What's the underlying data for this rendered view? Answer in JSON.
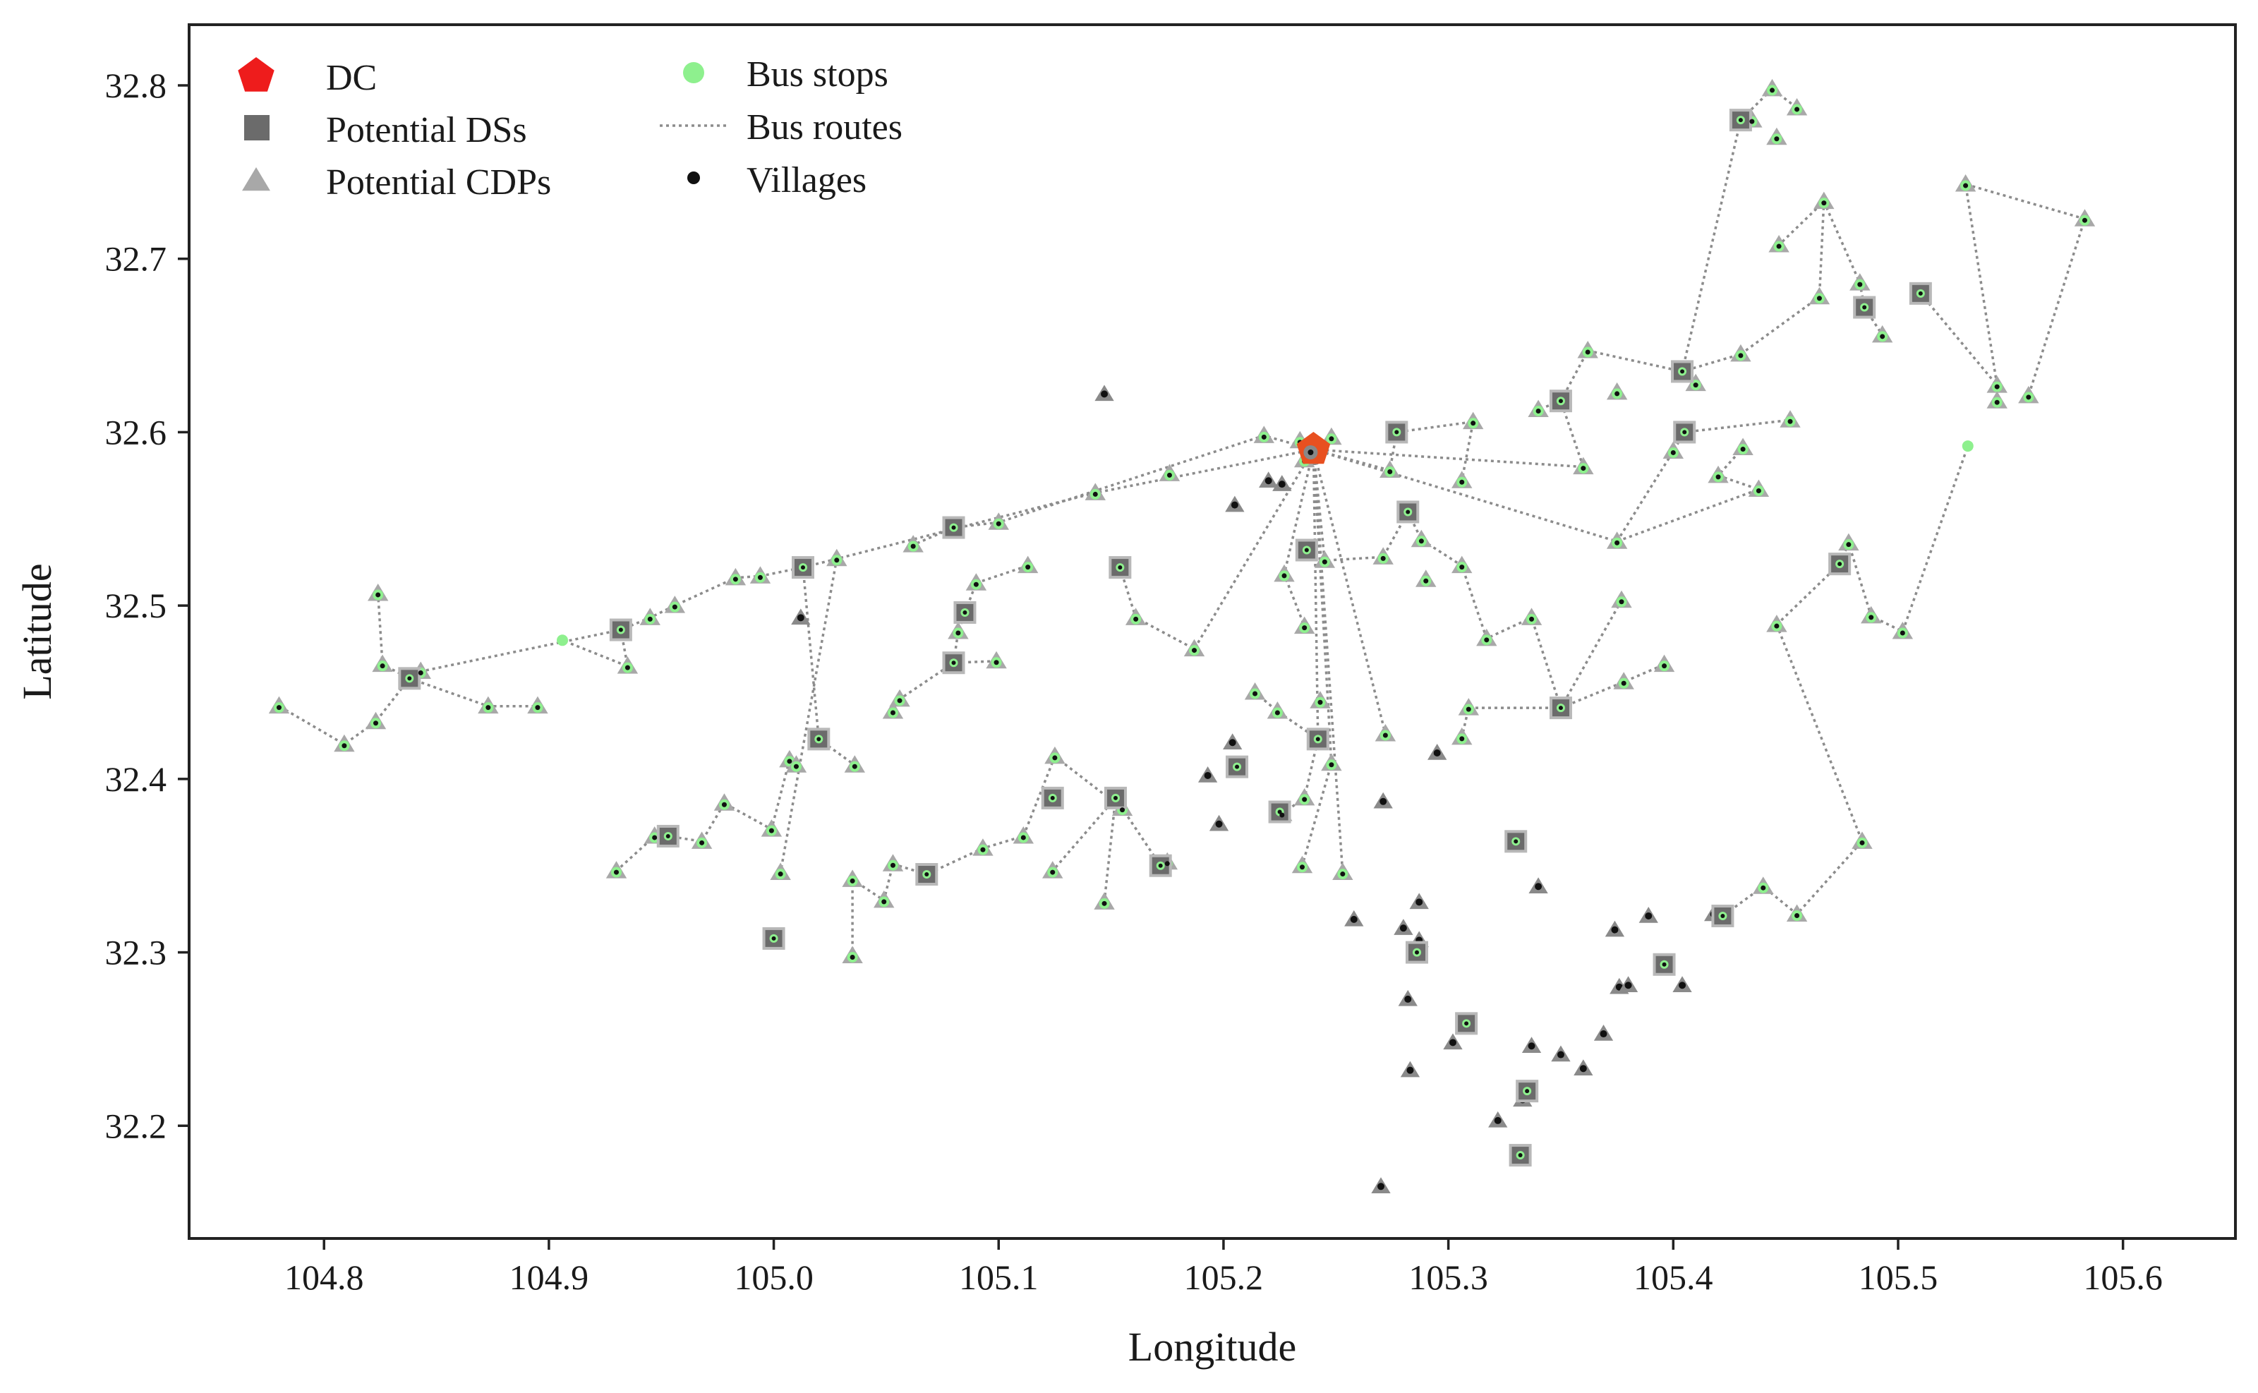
{
  "chart_data": {
    "type": "scatter",
    "title": "",
    "xlabel": "Longitude",
    "ylabel": "Latitude",
    "xlim": [
      104.74,
      105.65
    ],
    "ylim": [
      32.135,
      32.835
    ],
    "xticks": [
      "104.8",
      "104.9",
      "105.0",
      "105.1",
      "105.2",
      "105.3",
      "105.4",
      "105.5",
      "105.6"
    ],
    "yticks": [
      "32.2",
      "32.3",
      "32.4",
      "32.5",
      "32.6",
      "32.7",
      "32.8"
    ],
    "grid": false,
    "legend_position": "top-left",
    "legend": [
      {
        "key": "dc",
        "label": "DC"
      },
      {
        "key": "ds",
        "label": "Potential DSs"
      },
      {
        "key": "cdp",
        "label": "Potential CDPs"
      },
      {
        "key": "stop",
        "label": "Bus stops"
      },
      {
        "key": "route",
        "label": "Bus routes"
      },
      {
        "key": "village",
        "label": "Villages"
      }
    ],
    "colors": {
      "dc": "#ee1c1c",
      "ds": "#6b6b6b",
      "cdp": "#a8a8a8",
      "stop": "#8ef08e",
      "route": "#8c8c8c",
      "village": "#111111"
    },
    "dc": [
      [
        105.24,
        32.59
      ]
    ],
    "potential_ds": [
      [
        105.43,
        32.78
      ],
      [
        105.51,
        32.68
      ],
      [
        105.485,
        32.672
      ],
      [
        105.35,
        32.618
      ],
      [
        105.405,
        32.6
      ],
      [
        105.277,
        32.6
      ],
      [
        105.282,
        32.554
      ],
      [
        105.08,
        32.545
      ],
      [
        105.237,
        32.532
      ],
      [
        105.154,
        32.522
      ],
      [
        105.474,
        32.524
      ],
      [
        105.013,
        32.522
      ],
      [
        104.932,
        32.486
      ],
      [
        105.085,
        32.496
      ],
      [
        105.08,
        32.467
      ],
      [
        104.838,
        32.458
      ],
      [
        105.35,
        32.441
      ],
      [
        105.02,
        32.423
      ],
      [
        105.242,
        32.423
      ],
      [
        105.206,
        32.407
      ],
      [
        105.124,
        32.389
      ],
      [
        105.152,
        32.389
      ],
      [
        105.225,
        32.381
      ],
      [
        104.953,
        32.367
      ],
      [
        105.33,
        32.364
      ],
      [
        105.172,
        32.35
      ],
      [
        105.068,
        32.345
      ],
      [
        105.0,
        32.308
      ],
      [
        105.422,
        32.321
      ],
      [
        105.286,
        32.3
      ],
      [
        105.396,
        32.293
      ],
      [
        105.308,
        32.259
      ],
      [
        105.335,
        32.22
      ],
      [
        105.332,
        32.183
      ],
      [
        105.404,
        32.635
      ]
    ],
    "potential_cdp": [
      [
        105.435,
        32.78
      ],
      [
        105.444,
        32.798
      ],
      [
        105.455,
        32.787
      ],
      [
        105.446,
        32.77
      ],
      [
        105.467,
        32.733
      ],
      [
        105.447,
        32.708
      ],
      [
        105.465,
        32.678
      ],
      [
        105.483,
        32.686
      ],
      [
        105.493,
        32.656
      ],
      [
        105.53,
        32.743
      ],
      [
        105.583,
        32.723
      ],
      [
        105.544,
        32.627
      ],
      [
        105.558,
        32.621
      ],
      [
        105.544,
        32.618
      ],
      [
        105.362,
        32.647
      ],
      [
        105.43,
        32.645
      ],
      [
        105.41,
        32.628
      ],
      [
        105.375,
        32.623
      ],
      [
        105.34,
        32.613
      ],
      [
        105.452,
        32.607
      ],
      [
        105.431,
        32.591
      ],
      [
        105.4,
        32.589
      ],
      [
        105.42,
        32.575
      ],
      [
        105.438,
        32.567
      ],
      [
        105.36,
        32.58
      ],
      [
        105.248,
        32.597
      ],
      [
        105.311,
        32.606
      ],
      [
        105.218,
        32.598
      ],
      [
        105.234,
        32.595
      ],
      [
        105.236,
        32.584
      ],
      [
        105.274,
        32.578
      ],
      [
        105.306,
        32.572
      ],
      [
        105.176,
        32.576
      ],
      [
        105.1,
        32.548
      ],
      [
        105.143,
        32.565
      ],
      [
        105.375,
        32.537
      ],
      [
        105.288,
        32.538
      ],
      [
        105.271,
        32.528
      ],
      [
        105.245,
        32.526
      ],
      [
        105.062,
        32.535
      ],
      [
        105.113,
        32.523
      ],
      [
        105.306,
        32.523
      ],
      [
        105.29,
        32.515
      ],
      [
        105.09,
        32.513
      ],
      [
        105.028,
        32.527
      ],
      [
        104.994,
        32.517
      ],
      [
        104.983,
        32.516
      ],
      [
        104.956,
        32.5
      ],
      [
        104.945,
        32.493
      ],
      [
        104.824,
        32.507
      ],
      [
        104.826,
        32.466
      ],
      [
        104.843,
        32.462
      ],
      [
        104.935,
        32.465
      ],
      [
        104.873,
        32.442
      ],
      [
        104.895,
        32.442
      ],
      [
        104.78,
        32.442
      ],
      [
        104.809,
        32.42
      ],
      [
        104.823,
        32.433
      ],
      [
        105.227,
        32.518
      ],
      [
        105.236,
        32.488
      ],
      [
        105.161,
        32.493
      ],
      [
        105.187,
        32.475
      ],
      [
        105.317,
        32.481
      ],
      [
        105.337,
        32.493
      ],
      [
        105.377,
        32.503
      ],
      [
        105.396,
        32.466
      ],
      [
        105.378,
        32.456
      ],
      [
        105.446,
        32.489
      ],
      [
        105.478,
        32.536
      ],
      [
        105.488,
        32.494
      ],
      [
        105.502,
        32.485
      ],
      [
        105.099,
        32.468
      ],
      [
        105.082,
        32.485
      ],
      [
        105.214,
        32.45
      ],
      [
        105.224,
        32.439
      ],
      [
        105.243,
        32.445
      ],
      [
        105.272,
        32.426
      ],
      [
        105.306,
        32.424
      ],
      [
        105.309,
        32.441
      ],
      [
        105.056,
        32.446
      ],
      [
        105.053,
        32.439
      ],
      [
        105.036,
        32.408
      ],
      [
        105.007,
        32.411
      ],
      [
        105.01,
        32.408
      ],
      [
        105.125,
        32.413
      ],
      [
        105.248,
        32.409
      ],
      [
        105.236,
        32.389
      ],
      [
        104.978,
        32.386
      ],
      [
        104.999,
        32.371
      ],
      [
        104.968,
        32.364
      ],
      [
        104.947,
        32.367
      ],
      [
        104.93,
        32.347
      ],
      [
        105.035,
        32.342
      ],
      [
        105.049,
        32.33
      ],
      [
        105.053,
        32.351
      ],
      [
        105.111,
        32.367
      ],
      [
        105.093,
        32.36
      ],
      [
        105.124,
        32.347
      ],
      [
        105.175,
        32.352
      ],
      [
        105.147,
        32.329
      ],
      [
        105.155,
        32.383
      ],
      [
        105.235,
        32.35
      ],
      [
        105.253,
        32.346
      ],
      [
        105.035,
        32.298
      ],
      [
        105.003,
        32.346
      ],
      [
        105.484,
        32.364
      ],
      [
        105.455,
        32.322
      ],
      [
        105.44,
        32.338
      ],
      [
        105.226,
        32.38
      ]
    ],
    "stops": [
      [
        104.906,
        32.48
      ],
      [
        105.531,
        32.592
      ]
    ],
    "villages_only": [
      [
        105.147,
        32.622
      ],
      [
        105.205,
        32.558
      ],
      [
        105.226,
        32.57
      ],
      [
        105.22,
        32.572
      ],
      [
        105.012,
        32.493
      ],
      [
        105.193,
        32.402
      ],
      [
        105.204,
        32.421
      ],
      [
        105.198,
        32.374
      ],
      [
        105.271,
        32.387
      ],
      [
        105.295,
        32.415
      ],
      [
        105.258,
        32.319
      ],
      [
        105.287,
        32.329
      ],
      [
        105.28,
        32.314
      ],
      [
        105.287,
        32.307
      ],
      [
        105.282,
        32.273
      ],
      [
        105.283,
        32.232
      ],
      [
        105.302,
        32.248
      ],
      [
        105.322,
        32.203
      ],
      [
        105.333,
        32.215
      ],
      [
        105.337,
        32.246
      ],
      [
        105.34,
        32.338
      ],
      [
        105.35,
        32.241
      ],
      [
        105.36,
        32.233
      ],
      [
        105.369,
        32.253
      ],
      [
        105.376,
        32.28
      ],
      [
        105.38,
        32.281
      ],
      [
        105.374,
        32.313
      ],
      [
        105.389,
        32.321
      ],
      [
        105.404,
        32.281
      ],
      [
        105.27,
        32.165
      ],
      [
        105.418,
        32.322
      ]
    ],
    "routes": [
      [
        [
          105.24,
          32.59
        ],
        [
          105.218,
          32.598
        ],
        [
          105.1,
          32.548
        ],
        [
          105.08,
          32.545
        ],
        [
          105.062,
          32.535
        ]
      ],
      [
        [
          105.24,
          32.59
        ],
        [
          105.143,
          32.565
        ],
        [
          105.013,
          32.522
        ],
        [
          104.994,
          32.517
        ],
        [
          104.983,
          32.516
        ],
        [
          104.956,
          32.5
        ],
        [
          104.945,
          32.493
        ],
        [
          104.932,
          32.486
        ],
        [
          104.843,
          32.462
        ],
        [
          104.838,
          32.458
        ],
        [
          104.826,
          32.466
        ],
        [
          104.824,
          32.507
        ]
      ],
      [
        [
          104.932,
          32.486
        ],
        [
          104.935,
          32.465
        ],
        [
          104.906,
          32.48
        ]
      ],
      [
        [
          104.838,
          32.458
        ],
        [
          104.873,
          32.442
        ],
        [
          104.895,
          32.442
        ]
      ],
      [
        [
          104.838,
          32.458
        ],
        [
          104.823,
          32.433
        ],
        [
          104.809,
          32.42
        ],
        [
          104.78,
          32.442
        ]
      ],
      [
        [
          105.028,
          32.527
        ],
        [
          105.003,
          32.346
        ]
      ],
      [
        [
          105.013,
          32.522
        ],
        [
          105.02,
          32.423
        ],
        [
          105.036,
          32.408
        ]
      ],
      [
        [
          105.007,
          32.411
        ],
        [
          104.999,
          32.371
        ],
        [
          104.978,
          32.386
        ],
        [
          104.968,
          32.364
        ],
        [
          104.953,
          32.367
        ],
        [
          104.947,
          32.367
        ],
        [
          104.93,
          32.347
        ]
      ],
      [
        [
          105.09,
          32.513
        ],
        [
          105.113,
          32.523
        ]
      ],
      [
        [
          105.099,
          32.468
        ],
        [
          105.08,
          32.467
        ],
        [
          105.082,
          32.485
        ],
        [
          105.085,
          32.496
        ],
        [
          105.09,
          32.513
        ]
      ],
      [
        [
          105.08,
          32.467
        ],
        [
          105.056,
          32.446
        ],
        [
          105.053,
          32.439
        ]
      ],
      [
        [
          105.125,
          32.413
        ],
        [
          105.155,
          32.383
        ],
        [
          105.172,
          32.35
        ],
        [
          105.175,
          32.352
        ]
      ],
      [
        [
          105.125,
          32.413
        ],
        [
          105.111,
          32.367
        ],
        [
          105.093,
          32.36
        ],
        [
          105.068,
          32.345
        ],
        [
          105.053,
          32.351
        ],
        [
          105.049,
          32.33
        ],
        [
          105.035,
          32.342
        ],
        [
          105.035,
          32.298
        ]
      ],
      [
        [
          105.152,
          32.389
        ],
        [
          105.124,
          32.347
        ]
      ],
      [
        [
          105.152,
          32.389
        ],
        [
          105.147,
          32.329
        ]
      ],
      [
        [
          105.154,
          32.522
        ],
        [
          105.161,
          32.493
        ],
        [
          105.187,
          32.475
        ]
      ],
      [
        [
          105.24,
          32.59
        ],
        [
          105.187,
          32.475
        ]
      ],
      [
        [
          105.24,
          32.59
        ],
        [
          105.227,
          32.518
        ],
        [
          105.236,
          32.488
        ]
      ],
      [
        [
          105.24,
          32.59
        ],
        [
          105.242,
          32.423
        ],
        [
          105.236,
          32.389
        ],
        [
          105.226,
          32.38
        ]
      ],
      [
        [
          105.24,
          32.59
        ],
        [
          105.253,
          32.346
        ]
      ],
      [
        [
          105.24,
          32.59
        ],
        [
          105.248,
          32.409
        ],
        [
          105.235,
          32.35
        ]
      ],
      [
        [
          105.24,
          32.59
        ],
        [
          105.272,
          32.426
        ]
      ],
      [
        [
          105.242,
          32.423
        ],
        [
          105.224,
          32.439
        ],
        [
          105.214,
          32.45
        ]
      ],
      [
        [
          105.24,
          32.59
        ],
        [
          105.245,
          32.526
        ],
        [
          105.271,
          32.528
        ],
        [
          105.282,
          32.554
        ],
        [
          105.288,
          32.538
        ],
        [
          105.306,
          32.523
        ],
        [
          105.317,
          32.481
        ],
        [
          105.337,
          32.493
        ]
      ],
      [
        [
          105.24,
          32.59
        ],
        [
          105.274,
          32.578
        ],
        [
          105.277,
          32.6
        ],
        [
          105.311,
          32.606
        ],
        [
          105.306,
          32.572
        ]
      ],
      [
        [
          105.24,
          32.59
        ],
        [
          105.36,
          32.58
        ]
      ],
      [
        [
          105.24,
          32.59
        ],
        [
          105.375,
          32.537
        ],
        [
          105.438,
          32.567
        ],
        [
          105.42,
          32.575
        ],
        [
          105.431,
          32.591
        ]
      ],
      [
        [
          105.375,
          32.537
        ],
        [
          105.4,
          32.589
        ],
        [
          105.405,
          32.6
        ],
        [
          105.452,
          32.607
        ]
      ],
      [
        [
          105.36,
          32.58
        ],
        [
          105.35,
          32.618
        ],
        [
          105.34,
          32.613
        ]
      ],
      [
        [
          105.35,
          32.618
        ],
        [
          105.362,
          32.647
        ],
        [
          105.404,
          32.635
        ],
        [
          105.43,
          32.645
        ]
      ],
      [
        [
          105.404,
          32.635
        ],
        [
          105.41,
          32.628
        ]
      ],
      [
        [
          105.404,
          32.635
        ],
        [
          105.43,
          32.78
        ],
        [
          105.444,
          32.798
        ],
        [
          105.455,
          32.787
        ]
      ],
      [
        [
          105.43,
          32.645
        ],
        [
          105.465,
          32.678
        ],
        [
          105.467,
          32.733
        ],
        [
          105.447,
          32.708
        ]
      ],
      [
        [
          105.467,
          32.733
        ],
        [
          105.483,
          32.686
        ],
        [
          105.485,
          32.672
        ],
        [
          105.493,
          32.656
        ]
      ],
      [
        [
          105.51,
          32.68
        ],
        [
          105.544,
          32.627
        ],
        [
          105.53,
          32.743
        ],
        [
          105.583,
          32.723
        ],
        [
          105.558,
          32.621
        ]
      ],
      [
        [
          105.35,
          32.441
        ],
        [
          105.309,
          32.441
        ],
        [
          105.306,
          32.424
        ]
      ],
      [
        [
          105.35,
          32.441
        ],
        [
          105.377,
          32.503
        ]
      ],
      [
        [
          105.35,
          32.441
        ],
        [
          105.378,
          32.456
        ],
        [
          105.396,
          32.466
        ]
      ],
      [
        [
          105.35,
          32.441
        ],
        [
          105.337,
          32.493
        ]
      ],
      [
        [
          105.446,
          32.489
        ],
        [
          105.474,
          32.524
        ],
        [
          105.478,
          32.536
        ],
        [
          105.488,
          32.494
        ],
        [
          105.502,
          32.485
        ],
        [
          105.531,
          32.592
        ]
      ],
      [
        [
          105.446,
          32.489
        ],
        [
          105.484,
          32.364
        ],
        [
          105.455,
          32.322
        ],
        [
          105.44,
          32.338
        ],
        [
          105.422,
          32.321
        ]
      ]
    ]
  }
}
